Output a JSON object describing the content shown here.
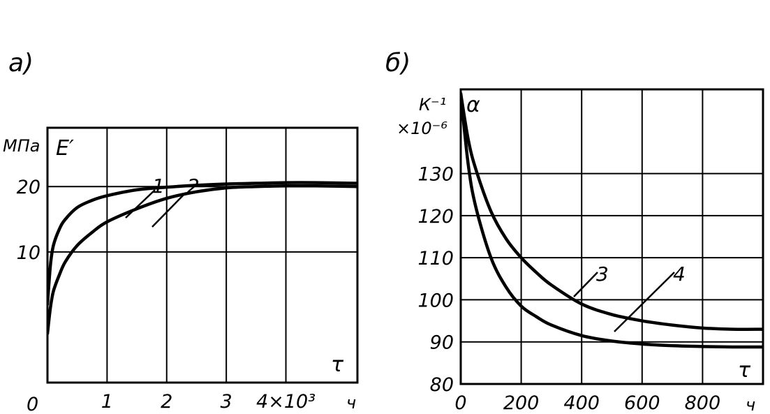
{
  "chart_data": [
    {
      "type": "line",
      "panel_label": "а)",
      "ylabel": "E′",
      "yunit": "МПа",
      "xlabel": "τ",
      "xunit": "ч",
      "origin_label": "0",
      "xlim": [
        0,
        5.2
      ],
      "ylim": [
        -10,
        29
      ],
      "grid": true,
      "x_ticks": [
        {
          "value": 1,
          "label": "1"
        },
        {
          "value": 2,
          "label": "2"
        },
        {
          "value": 3,
          "label": "3"
        },
        {
          "value": 4,
          "label": "4×10³"
        }
      ],
      "y_ticks": [
        {
          "value": 10,
          "label": "10"
        },
        {
          "value": 20,
          "label": "20"
        }
      ],
      "series": [
        {
          "name": "1",
          "x": [
            0,
            0.05,
            0.1,
            0.2,
            0.3,
            0.5,
            0.75,
            1.0,
            1.5,
            2.0,
            2.5,
            3.0,
            3.5,
            4.0,
            4.5,
            5.2
          ],
          "y": [
            2,
            8,
            11,
            13.5,
            15,
            16.8,
            17.9,
            18.6,
            19.5,
            19.9,
            20.2,
            20.4,
            20.5,
            20.6,
            20.6,
            20.5
          ]
        },
        {
          "name": "2",
          "x": [
            0,
            0.05,
            0.1,
            0.2,
            0.3,
            0.5,
            0.75,
            1.0,
            1.5,
            2.0,
            2.5,
            3.0,
            3.5,
            4.0,
            4.5,
            5.2
          ],
          "y": [
            -2.5,
            1.5,
            4,
            6.5,
            8.5,
            11,
            13,
            14.6,
            16.6,
            18.2,
            19.2,
            19.8,
            20,
            20.1,
            20.1,
            20
          ]
        }
      ]
    },
    {
      "type": "line",
      "panel_label": "б)",
      "ylabel": "α",
      "yunit": "К⁻¹",
      "yscale_label": "×10⁻⁶",
      "xlabel": "τ",
      "xunit": "ч",
      "xlim": [
        0,
        1000
      ],
      "ylim": [
        80,
        150
      ],
      "grid": true,
      "x_ticks": [
        {
          "value": 0,
          "label": "0"
        },
        {
          "value": 200,
          "label": "200"
        },
        {
          "value": 400,
          "label": "400"
        },
        {
          "value": 600,
          "label": "600"
        },
        {
          "value": 800,
          "label": "800"
        }
      ],
      "y_ticks": [
        {
          "value": 80,
          "label": "80"
        },
        {
          "value": 90,
          "label": "90"
        },
        {
          "value": 100,
          "label": "100"
        },
        {
          "value": 110,
          "label": "110"
        },
        {
          "value": 120,
          "label": "120"
        },
        {
          "value": 130,
          "label": "130"
        }
      ],
      "series": [
        {
          "name": "3",
          "x": [
            0,
            25,
            50,
            100,
            150,
            200,
            250,
            300,
            400,
            500,
            600,
            700,
            800,
            900,
            1000
          ],
          "y": [
            149,
            138,
            131,
            121,
            114.5,
            110,
            106.5,
            103.5,
            99,
            96.5,
            95,
            94,
            93.3,
            93,
            93
          ]
        },
        {
          "name": "4",
          "x": [
            0,
            25,
            50,
            100,
            150,
            200,
            250,
            300,
            400,
            500,
            600,
            700,
            800,
            900,
            1000
          ],
          "y": [
            149,
            132,
            122,
            110,
            103,
            98.5,
            96,
            94,
            91.5,
            90.2,
            89.5,
            89.1,
            88.9,
            88.8,
            88.8
          ]
        }
      ]
    }
  ]
}
